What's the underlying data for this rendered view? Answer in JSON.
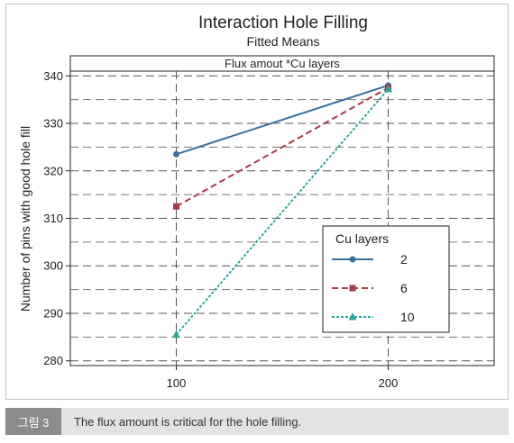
{
  "caption": {
    "tag": "그림 3",
    "text": "The flux amount is critical for the hole filling."
  },
  "chart_data": {
    "type": "line",
    "title": "Interaction Hole Filling",
    "subtitle": "Fitted Means",
    "panel_label": "Flux amout *Cu layers",
    "xlabel": "",
    "ylabel": "Number of pins with good hole fill",
    "x": [
      100,
      200
    ],
    "x_tick_labels": [
      "100",
      "200"
    ],
    "xlim": [
      50,
      250
    ],
    "ylim": [
      279,
      341
    ],
    "y_ticks": [
      280,
      290,
      300,
      310,
      320,
      330,
      340
    ],
    "y_tick_labels": [
      "280",
      "290",
      "300",
      "310",
      "320",
      "330",
      "340"
    ],
    "grid": true,
    "legend": {
      "title": "Cu layers",
      "position": "right"
    },
    "series": [
      {
        "name": "2",
        "values": [
          323.5,
          338.0
        ],
        "color": "#3a6f9e",
        "marker": "circle",
        "dash": "solid"
      },
      {
        "name": "6",
        "values": [
          312.5,
          337.5
        ],
        "color": "#a83a4a",
        "marker": "square",
        "dash": "dashed"
      },
      {
        "name": "10",
        "values": [
          285.5,
          337.2
        ],
        "color": "#2fa39c",
        "marker": "triangle",
        "dash": "dotted"
      }
    ]
  }
}
